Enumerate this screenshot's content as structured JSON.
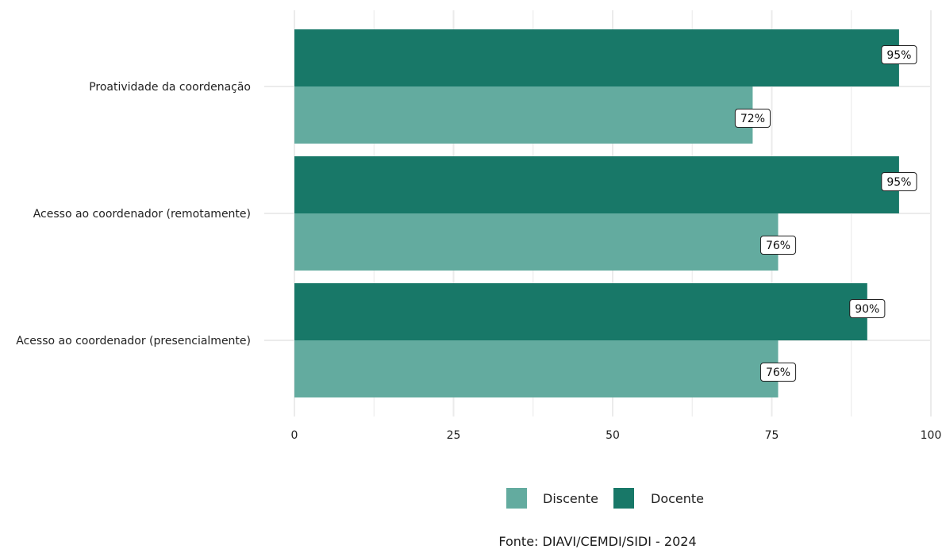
{
  "chart_data": {
    "type": "bar",
    "orientation": "horizontal",
    "categories": [
      "Proatividade da coordenação",
      "Acesso ao coordenador (remotamente)",
      "Acesso ao coordenador (presencialmente)"
    ],
    "series": [
      {
        "name": "Discente",
        "color": "#63ab9f",
        "values": [
          72,
          76,
          76
        ],
        "labels": [
          "72%",
          "76%",
          "76%"
        ]
      },
      {
        "name": "Docente",
        "color": "#187868",
        "values": [
          95,
          95,
          90
        ],
        "labels": [
          "95%",
          "95%",
          "90%"
        ]
      }
    ],
    "xlim": [
      0,
      100
    ],
    "xticks": [
      0,
      25,
      50,
      75,
      100
    ],
    "grid": true,
    "legend_position": "bottom",
    "caption": "Fonte: DIAVI/CEMDI/SIDI - 2024"
  }
}
